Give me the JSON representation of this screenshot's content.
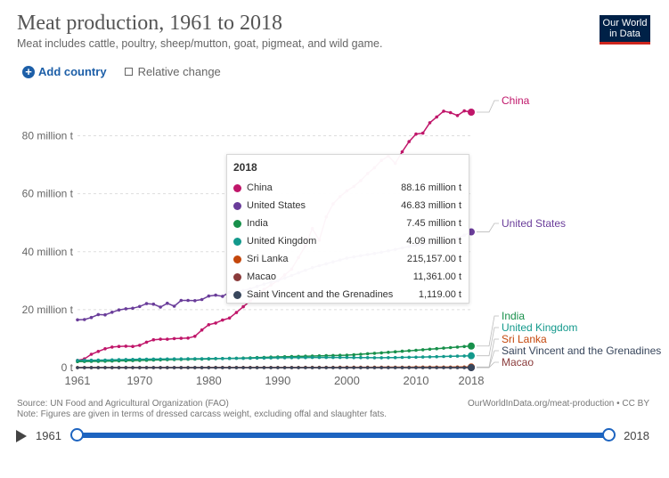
{
  "header": {
    "title": "Meat production, 1961 to 2018",
    "subtitle": "Meat includes cattle, poultry, sheep/mutton, goat, pigmeat, and wild game.",
    "logo_line1": "Our World",
    "logo_line2": "in Data"
  },
  "controls": {
    "add_country": "Add country",
    "relative_change": "Relative change"
  },
  "chart_data": {
    "type": "line",
    "title": "Meat production, 1961 to 2018",
    "ylabel": "",
    "xlabel": "",
    "xlim": [
      1961,
      2018
    ],
    "ylim": [
      0,
      90000000
    ],
    "y_ticks": [
      0,
      20000000,
      40000000,
      60000000,
      80000000
    ],
    "y_tick_labels": [
      "0 t",
      "20 million t",
      "40 million t",
      "60 million t",
      "80 million t"
    ],
    "x_ticks": [
      1961,
      1970,
      1980,
      1990,
      2000,
      2010,
      2018
    ],
    "x_tick_labels": [
      "1961",
      "1970",
      "1980",
      "1990",
      "2000",
      "2010",
      "2018"
    ],
    "colors": {
      "China": "#c0166a",
      "United States": "#6a3d9a",
      "India": "#18904b",
      "United Kingdom": "#13998c",
      "Sri Lanka": "#c4470c",
      "Macao": "#8a3b3b",
      "Saint Vincent and the Grenadines": "#38465c"
    },
    "series": [
      {
        "name": "China",
        "anchors": [
          [
            1961,
            2.5
          ],
          [
            1962,
            3.0
          ],
          [
            1963,
            4.6
          ],
          [
            1964,
            5.6
          ],
          [
            1965,
            6.5
          ],
          [
            1966,
            7.1
          ],
          [
            1967,
            7.3
          ],
          [
            1968,
            7.4
          ],
          [
            1969,
            7.3
          ],
          [
            1970,
            7.7
          ],
          [
            1971,
            8.8
          ],
          [
            1972,
            9.6
          ],
          [
            1973,
            9.8
          ],
          [
            1974,
            9.8
          ],
          [
            1975,
            10.0
          ],
          [
            1976,
            10.1
          ],
          [
            1977,
            10.2
          ],
          [
            1978,
            10.8
          ],
          [
            1979,
            13.0
          ],
          [
            1980,
            14.8
          ],
          [
            1981,
            15.4
          ],
          [
            1982,
            16.4
          ],
          [
            1983,
            17.1
          ],
          [
            1984,
            19.0
          ],
          [
            1985,
            21.0
          ],
          [
            1986,
            23.0
          ],
          [
            1987,
            25.0
          ],
          [
            1988,
            27.0
          ],
          [
            1989,
            28.5
          ],
          [
            1990,
            30.0
          ],
          [
            1991,
            32.0
          ],
          [
            1992,
            34.0
          ],
          [
            1993,
            38.0
          ],
          [
            1994,
            42.0
          ],
          [
            1995,
            48.0
          ],
          [
            1996,
            44.0
          ],
          [
            1997,
            52.0
          ],
          [
            1998,
            56.5
          ],
          [
            1999,
            59.0
          ],
          [
            2000,
            61.0
          ],
          [
            2001,
            62.5
          ],
          [
            2002,
            64.5
          ],
          [
            2003,
            67.0
          ],
          [
            2004,
            69.0
          ],
          [
            2005,
            71.5
          ],
          [
            2006,
            73.0
          ],
          [
            2007,
            70.5
          ],
          [
            2008,
            74.5
          ],
          [
            2009,
            78.0
          ],
          [
            2010,
            80.6
          ],
          [
            2011,
            80.9
          ],
          [
            2012,
            84.5
          ],
          [
            2013,
            86.5
          ],
          [
            2014,
            88.5
          ],
          [
            2015,
            88.0
          ],
          [
            2016,
            87.0
          ],
          [
            2017,
            88.6
          ],
          [
            2018,
            88.16
          ]
        ]
      },
      {
        "name": "United States",
        "anchors": [
          [
            1961,
            16.5
          ],
          [
            1962,
            16.6
          ],
          [
            1963,
            17.3
          ],
          [
            1964,
            18.3
          ],
          [
            1965,
            18.2
          ],
          [
            1966,
            19.1
          ],
          [
            1967,
            19.9
          ],
          [
            1968,
            20.3
          ],
          [
            1969,
            20.5
          ],
          [
            1970,
            21.1
          ],
          [
            1971,
            22.1
          ],
          [
            1972,
            21.9
          ],
          [
            1973,
            20.9
          ],
          [
            1974,
            22.2
          ],
          [
            1975,
            21.2
          ],
          [
            1976,
            23.2
          ],
          [
            1977,
            23.2
          ],
          [
            1978,
            23.1
          ],
          [
            1979,
            23.5
          ],
          [
            1980,
            24.7
          ],
          [
            1981,
            25.0
          ],
          [
            1982,
            24.6
          ],
          [
            1983,
            26.0
          ],
          [
            1984,
            26.2
          ],
          [
            1985,
            26.6
          ],
          [
            1986,
            27.2
          ],
          [
            1987,
            28.0
          ],
          [
            1988,
            28.8
          ],
          [
            1989,
            29.5
          ],
          [
            1990,
            30.0
          ],
          [
            1995,
            34.5
          ],
          [
            2000,
            37.8
          ],
          [
            2005,
            39.8
          ],
          [
            2010,
            42.3
          ],
          [
            2015,
            43.5
          ],
          [
            2018,
            46.83
          ]
        ]
      },
      {
        "name": "India",
        "anchors": [
          [
            1961,
            2.1
          ],
          [
            1965,
            2.2
          ],
          [
            1970,
            2.5
          ],
          [
            1975,
            2.8
          ],
          [
            1980,
            3.0
          ],
          [
            1985,
            3.3
          ],
          [
            1990,
            3.7
          ],
          [
            1995,
            4.0
          ],
          [
            2000,
            4.3
          ],
          [
            2005,
            5.1
          ],
          [
            2010,
            6.0
          ],
          [
            2015,
            6.9
          ],
          [
            2018,
            7.45
          ]
        ]
      },
      {
        "name": "United Kingdom",
        "anchors": [
          [
            1961,
            2.5
          ],
          [
            1965,
            2.6
          ],
          [
            1970,
            2.9
          ],
          [
            1975,
            3.0
          ],
          [
            1980,
            3.1
          ],
          [
            1985,
            3.2
          ],
          [
            1990,
            3.4
          ],
          [
            1995,
            3.5
          ],
          [
            2000,
            3.5
          ],
          [
            2005,
            3.4
          ],
          [
            2010,
            3.6
          ],
          [
            2015,
            3.9
          ],
          [
            2018,
            4.09
          ]
        ]
      },
      {
        "name": "Sri Lanka",
        "anchors": [
          [
            1961,
            0.02
          ],
          [
            1990,
            0.06
          ],
          [
            2018,
            0.215
          ]
        ]
      },
      {
        "name": "Macao",
        "anchors": [
          [
            1961,
            0.01
          ],
          [
            2018,
            0.011
          ]
        ]
      },
      {
        "name": "Saint Vincent and the Grenadines",
        "anchors": [
          [
            1961,
            0.001
          ],
          [
            2018,
            0.001
          ]
        ]
      }
    ],
    "end_labels": [
      "China",
      "United States",
      "India",
      "United Kingdom",
      "Sri Lanka",
      "Saint Vincent and the Grenadines",
      "Macao"
    ]
  },
  "tooltip": {
    "year": "2018",
    "rows": [
      {
        "name": "China",
        "value": "88.16 million t",
        "color": "#c0166a"
      },
      {
        "name": "United States",
        "value": "46.83 million t",
        "color": "#6a3d9a"
      },
      {
        "name": "India",
        "value": "7.45 million t",
        "color": "#18904b"
      },
      {
        "name": "United Kingdom",
        "value": "4.09 million t",
        "color": "#13998c"
      },
      {
        "name": "Sri Lanka",
        "value": "215,157.00 t",
        "color": "#c4470c"
      },
      {
        "name": "Macao",
        "value": "11,361.00 t",
        "color": "#8a3b3b"
      },
      {
        "name": "Saint Vincent and the Grenadines",
        "value": "1,119.00 t",
        "color": "#38465c"
      }
    ]
  },
  "footer": {
    "source": "Source: UN Food and Agricultural Organization (FAO)",
    "note": "Note: Figures are given in terms of dressed carcass weight, excluding offal and slaughter fats.",
    "url": "OurWorldInData.org/meat-production • CC BY"
  },
  "timeline": {
    "start_year": "1961",
    "end_year": "2018"
  }
}
